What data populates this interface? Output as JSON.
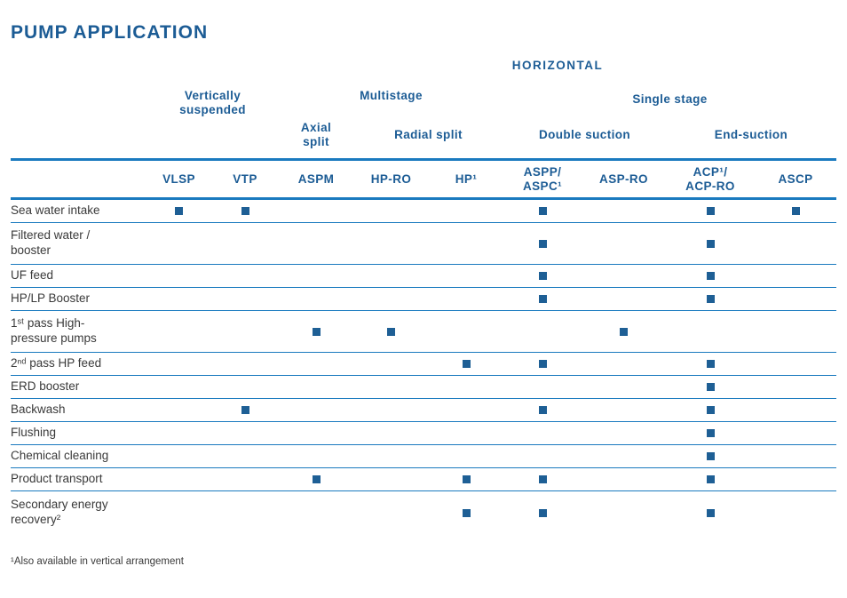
{
  "title": "PUMP APPLICATION",
  "header": {
    "horizontal": "HORIZONTAL",
    "groups": {
      "vertically_suspended": "Vertically\nsuspended",
      "multistage": "Multistage",
      "single_stage": "Single stage",
      "axial_split": "Axial\nsplit",
      "radial_split": "Radial split",
      "double_suction": "Double suction",
      "end_suction": "End-suction"
    },
    "columns": [
      "VLSP",
      "VTP",
      "ASPM",
      "HP-RO",
      "HP¹",
      "ASPP/\nASPC¹",
      "ASP-RO",
      "ACP¹/\nACP-RO",
      "ASCP"
    ]
  },
  "table": {
    "rows": [
      {
        "label": "Sea water intake",
        "markers": [
          1,
          1,
          0,
          0,
          0,
          1,
          0,
          1,
          1
        ]
      },
      {
        "label": "Filtered water /\nbooster",
        "markers": [
          0,
          0,
          0,
          0,
          0,
          1,
          0,
          1,
          0
        ]
      },
      {
        "label": "UF feed",
        "markers": [
          0,
          0,
          0,
          0,
          0,
          1,
          0,
          1,
          0
        ]
      },
      {
        "label": "HP/LP Booster",
        "markers": [
          0,
          0,
          0,
          0,
          0,
          1,
          0,
          1,
          0
        ]
      },
      {
        "label": "1ˢᵗ pass High-\npressure pumps",
        "markers": [
          0,
          0,
          1,
          1,
          0,
          0,
          1,
          0,
          0
        ]
      },
      {
        "label": "2ⁿᵈ pass HP feed",
        "markers": [
          0,
          0,
          0,
          0,
          1,
          1,
          0,
          1,
          0
        ]
      },
      {
        "label": "ERD booster",
        "markers": [
          0,
          0,
          0,
          0,
          0,
          0,
          0,
          1,
          0
        ]
      },
      {
        "label": "Backwash",
        "markers": [
          0,
          1,
          0,
          0,
          0,
          1,
          0,
          1,
          0
        ]
      },
      {
        "label": "Flushing",
        "markers": [
          0,
          0,
          0,
          0,
          0,
          0,
          0,
          1,
          0
        ]
      },
      {
        "label": "Chemical cleaning",
        "markers": [
          0,
          0,
          0,
          0,
          0,
          0,
          0,
          1,
          0
        ]
      },
      {
        "label": "Product transport",
        "markers": [
          0,
          0,
          1,
          0,
          1,
          1,
          0,
          1,
          0
        ]
      },
      {
        "label": "Secondary energy\nrecovery²",
        "markers": [
          0,
          0,
          0,
          0,
          1,
          1,
          0,
          1,
          0
        ]
      }
    ]
  },
  "footnote": "¹Also available in vertical arrangement",
  "colors": {
    "heading": "#1c5c95",
    "marker": "#1e5f95",
    "line": "#1a7abf",
    "row_text": "#3a3a3a"
  }
}
